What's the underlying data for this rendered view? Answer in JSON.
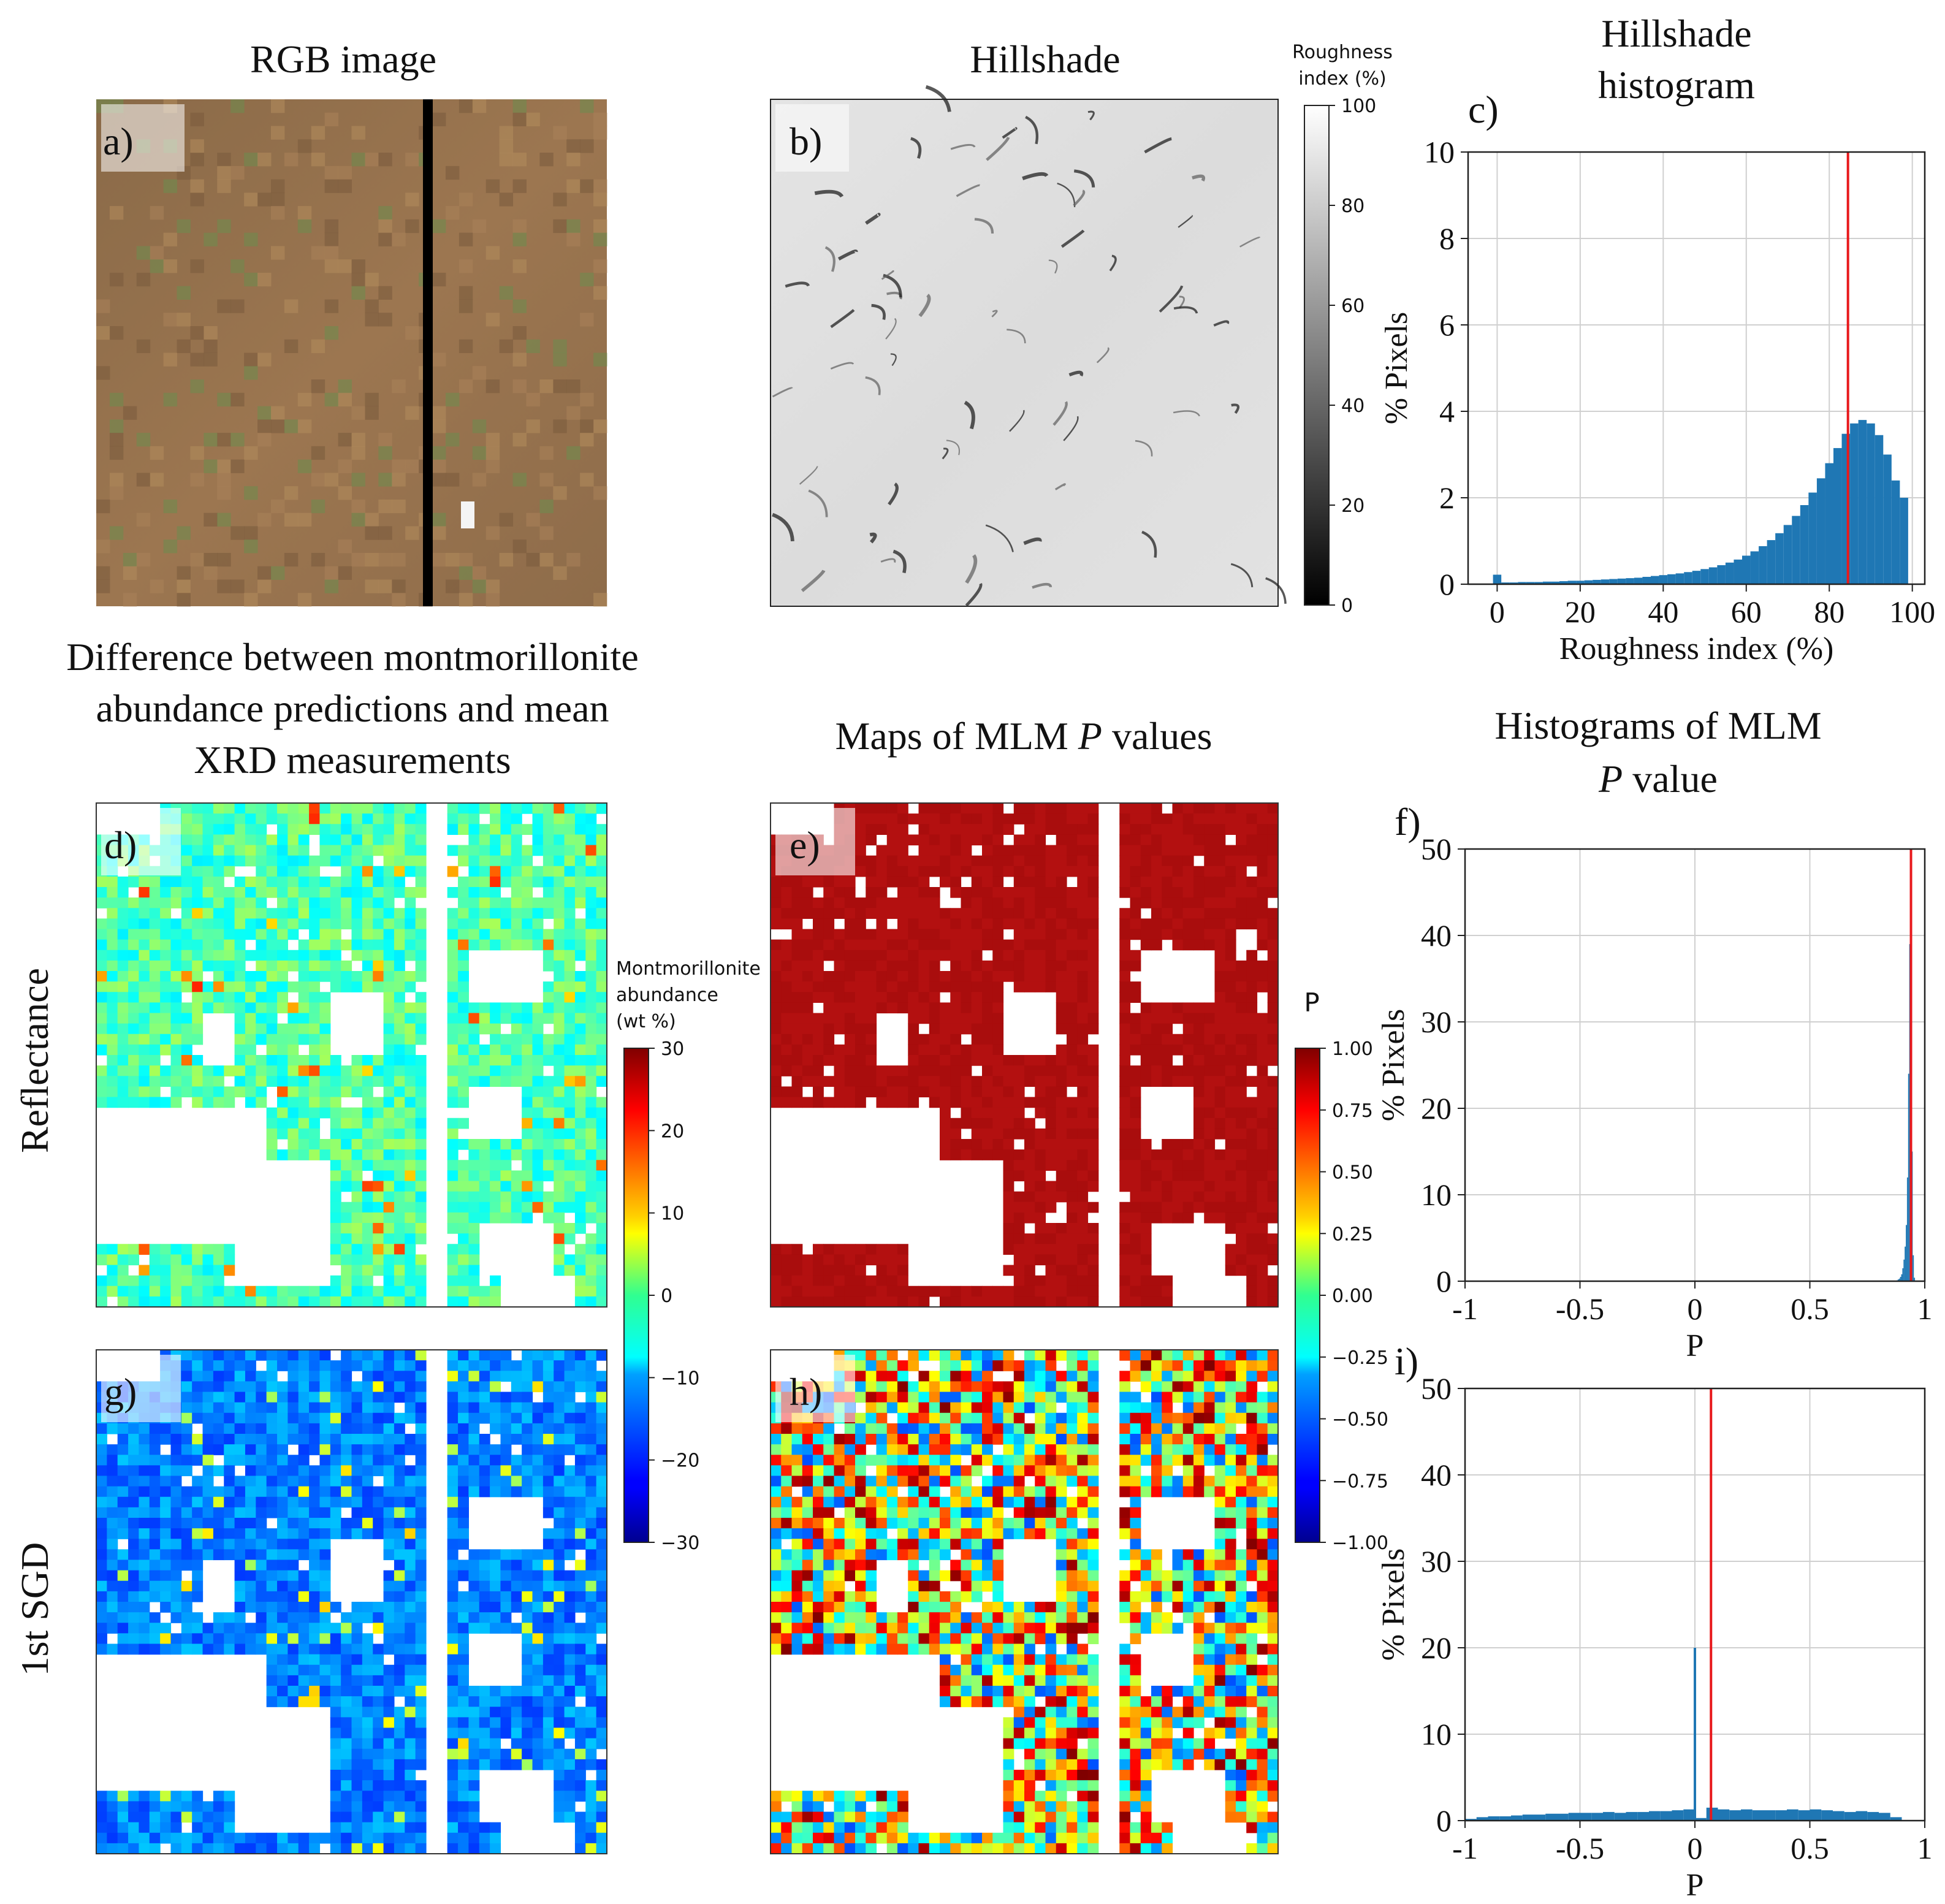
{
  "titles": {
    "rgb": "RGB image",
    "hillshade": "Hillshade",
    "hist_c": [
      "Hillshade",
      "histogram"
    ],
    "diff": [
      "Difference between montmorillonite",
      "abundance predictions and mean",
      "XRD measurements"
    ],
    "mlm_maps": [
      "Maps of MLM ",
      "P",
      " values"
    ],
    "mlm_hist": [
      "Histograms of MLM",
      "P",
      " value"
    ]
  },
  "row_labels": {
    "reflectance": "Reflectance",
    "sgd": "1st SGD"
  },
  "panel_labels": {
    "a": "a)",
    "b": "b)",
    "c": "c)",
    "d": "d)",
    "e": "e)",
    "f": "f)",
    "g": "g)",
    "h": "h)",
    "i": "i)"
  },
  "colorbars": {
    "roughness": {
      "title": [
        "Roughness",
        "index (%)"
      ],
      "ticks": [
        "100",
        "80",
        "60",
        "40",
        "20",
        "0"
      ],
      "range": [
        0,
        100
      ]
    },
    "montmorillonite": {
      "title": [
        "Montmorillonite",
        "abundance",
        "(wt %)"
      ],
      "ticks": [
        "30",
        "20",
        "10",
        "0",
        "−10",
        "−20",
        "−30"
      ],
      "range": [
        -30,
        30
      ]
    },
    "p": {
      "title": "P",
      "ticks": [
        "1.00",
        "0.75",
        "0.50",
        "0.25",
        "0.00",
        "−0.25",
        "−0.50",
        "−0.75",
        "−1.00"
      ],
      "range": [
        -1,
        1
      ]
    }
  },
  "colors": {
    "bar": "#1f77b4",
    "marker_line": "#e8191c",
    "grid": "#d0d0d0",
    "jet_dark_red": "#b01010"
  },
  "chart_data": [
    {
      "id": "c",
      "type": "bar",
      "title": "Hillshade histogram",
      "xlabel": "Roughness  index (%)",
      "ylabel": "% Pixels",
      "xlim": [
        -7,
        103
      ],
      "ylim": [
        0,
        10
      ],
      "xticks": [
        "0",
        "20",
        "40",
        "60",
        "80",
        "100"
      ],
      "yticks": [
        "0",
        "2",
        "4",
        "6",
        "8",
        "10"
      ],
      "bin_width": 2,
      "x": [
        0,
        2,
        4,
        6,
        8,
        10,
        12,
        14,
        16,
        18,
        20,
        22,
        24,
        26,
        28,
        30,
        32,
        34,
        36,
        38,
        40,
        42,
        44,
        46,
        48,
        50,
        52,
        54,
        56,
        58,
        60,
        62,
        64,
        66,
        68,
        70,
        72,
        74,
        76,
        78,
        80,
        82,
        84,
        86,
        88,
        90,
        92,
        94,
        96,
        98
      ],
      "values": [
        0.22,
        0.04,
        0.04,
        0.05,
        0.05,
        0.05,
        0.06,
        0.06,
        0.07,
        0.08,
        0.08,
        0.09,
        0.1,
        0.11,
        0.12,
        0.13,
        0.14,
        0.15,
        0.17,
        0.19,
        0.21,
        0.23,
        0.25,
        0.28,
        0.31,
        0.35,
        0.39,
        0.44,
        0.5,
        0.57,
        0.66,
        0.76,
        0.88,
        1.02,
        1.18,
        1.37,
        1.58,
        1.83,
        2.12,
        2.45,
        2.8,
        3.15,
        3.48,
        3.72,
        3.8,
        3.72,
        3.45,
        3.0,
        2.4,
        2.0
      ],
      "vline": 84.5
    },
    {
      "id": "f",
      "type": "bar",
      "title": "Histograms of MLM P value",
      "xlabel": "P",
      "ylabel": "% Pixels",
      "xlim": [
        -1,
        1
      ],
      "ylim": [
        0,
        50
      ],
      "xticks": [
        "-1",
        "-0.5",
        "0",
        "0.5",
        "1"
      ],
      "yticks": [
        "0",
        "10",
        "20",
        "30",
        "40",
        "50"
      ],
      "bin_width": 0.005,
      "x": [
        0.88,
        0.885,
        0.89,
        0.895,
        0.9,
        0.905,
        0.91,
        0.915,
        0.92,
        0.925,
        0.93,
        0.935,
        0.94,
        0.945,
        0.95,
        0.955
      ],
      "values": [
        0.1,
        0.2,
        0.3,
        0.5,
        0.8,
        1.5,
        2.5,
        4.0,
        6.5,
        12.0,
        24.0,
        39.0,
        33.0,
        15.0,
        3.0,
        0.4
      ],
      "vline": 0.94
    },
    {
      "id": "i",
      "type": "bar",
      "xlabel": "P",
      "ylabel": "% Pixels",
      "xlim": [
        -1,
        1
      ],
      "ylim": [
        0,
        50
      ],
      "xticks": [
        "-1",
        "-0.5",
        "0",
        "0.5",
        "1"
      ],
      "yticks": [
        "0",
        "10",
        "20",
        "30",
        "40",
        "50"
      ],
      "bin_width": 0.05,
      "x": [
        -0.975,
        -0.925,
        -0.875,
        -0.825,
        -0.775,
        -0.725,
        -0.675,
        -0.625,
        -0.575,
        -0.525,
        -0.475,
        -0.425,
        -0.375,
        -0.325,
        -0.275,
        -0.225,
        -0.175,
        -0.125,
        -0.075,
        -0.025,
        0.025,
        0.075,
        0.125,
        0.175,
        0.225,
        0.275,
        0.325,
        0.375,
        0.425,
        0.475,
        0.525,
        0.575,
        0.625,
        0.675,
        0.725,
        0.775,
        0.825,
        0.875
      ],
      "values": [
        0.2,
        0.4,
        0.5,
        0.5,
        0.6,
        0.7,
        0.7,
        0.8,
        0.8,
        0.9,
        0.9,
        0.9,
        1.0,
        0.9,
        1.0,
        1.0,
        1.1,
        1.1,
        1.2,
        1.3,
        0.3,
        1.5,
        1.3,
        1.2,
        1.3,
        1.2,
        1.2,
        1.2,
        1.3,
        1.2,
        1.3,
        1.2,
        1.1,
        1.0,
        1.1,
        1.0,
        0.9,
        0.4
      ],
      "spike": {
        "x": 0.0,
        "value": 20.0
      },
      "vline": 0.07
    }
  ]
}
